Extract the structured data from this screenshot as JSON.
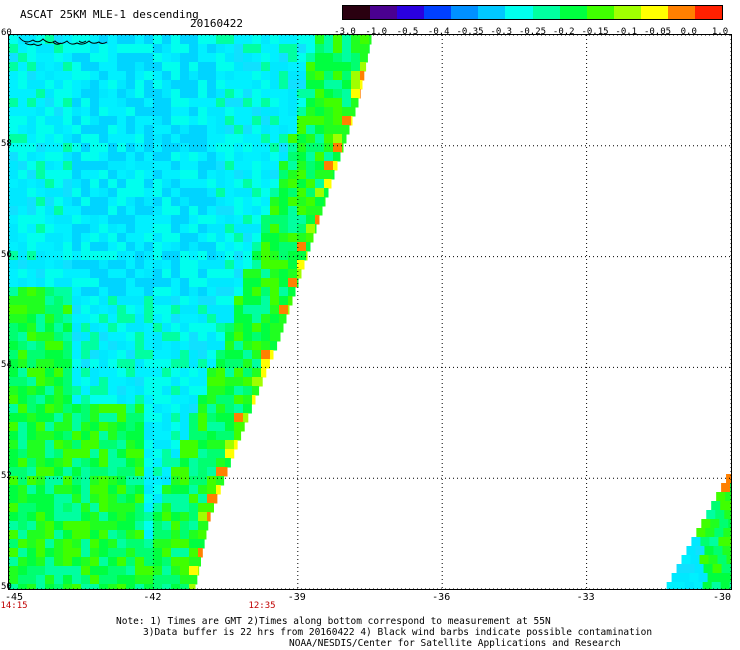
{
  "header": {
    "title": "ASCAT 25KM MLE-1 descending",
    "date": "20160422"
  },
  "colorbar": {
    "labels": [
      "-3.0",
      "-1.0",
      "-0.5",
      "-0.4",
      "-0.35",
      "-0.3",
      "-0.25",
      "-0.2",
      "-0.15",
      "-0.1",
      "-0.05",
      "0.0",
      "1.0"
    ],
    "colors": [
      "#2a0010",
      "#4a0090",
      "#2a00e0",
      "#0040ff",
      "#0090ff",
      "#00c8ff",
      "#00ffee",
      "#00ffa0",
      "#00ff40",
      "#40ff00",
      "#a0ff00",
      "#ffff00",
      "#ff8000",
      "#ff2000"
    ]
  },
  "map": {
    "lon_range": [
      -45,
      -30
    ],
    "lat_range": [
      50,
      60
    ],
    "lon_ticks": [
      "-45",
      "-42",
      "-39",
      "-36",
      "-33",
      "-30"
    ],
    "lat_ticks": [
      "60",
      "58",
      "56",
      "54",
      "52",
      "50"
    ],
    "pass_times": [
      {
        "label": "14:15",
        "lon": -45
      },
      {
        "label": "12:35",
        "lon": -40
      }
    ]
  },
  "notes": {
    "line1": "Note: 1) Times are GMT 2)Times along bottom correspond to measurement at 55N",
    "line2": "3)Data buffer is 22 hrs from 20160422 4) Black wind barbs indicate possible contamination",
    "line3": "NOAA/NESDIS/Center for Satellite Applications and Research"
  }
}
